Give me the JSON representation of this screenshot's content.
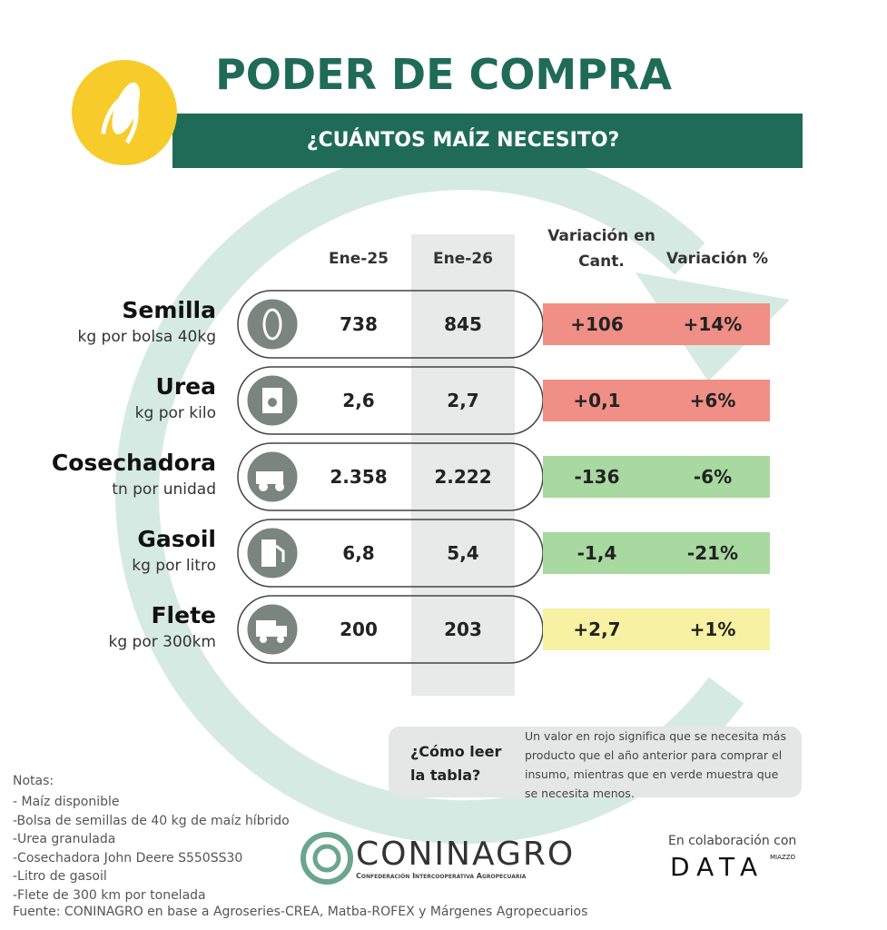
{
  "header": {
    "title": "PODER DE COMPRA",
    "subtitle": "¿CUÁNTOS MAÍZ NECESITO?"
  },
  "table": {
    "columns": [
      "Ene-25",
      "Ene-26",
      "Variación en Cant.",
      "Variación %"
    ],
    "rows": [
      {
        "name": "Semilla",
        "unit": "kg por bolsa 40kg",
        "ene25": "738",
        "ene26": "845",
        "var": "+106",
        "pct": "+14%",
        "color": "#ef8f85"
      },
      {
        "name": "Urea",
        "unit": "kg por kilo",
        "ene25": "2,6",
        "ene26": "2,7",
        "var": "+0,1",
        "pct": "+6%",
        "color": "#ef8f85"
      },
      {
        "name": "Cosechadora",
        "unit": "tn por unidad",
        "ene25": "2.358",
        "ene26": "2.222",
        "var": "-136",
        "pct": "-6%",
        "color": "#a8d9a0"
      },
      {
        "name": "Gasoil",
        "unit": "kg por litro",
        "ene25": "6,8",
        "ene26": "5,4",
        "var": "-1,4",
        "pct": "-21%",
        "color": "#a8d9a0"
      },
      {
        "name": "Flete",
        "unit": "kg por 300km",
        "ene25": "200",
        "ene26": "203",
        "var": "+2,7",
        "pct": "+1%",
        "color": "#f6f1a3"
      }
    ]
  },
  "legend": {
    "question": "¿Cómo leer la tabla?",
    "text": "Un valor en rojo significa que se necesita más producto que el año anterior para comprar el insumo, mientras que en verde muestra que se necesita menos."
  },
  "notes": {
    "title": "Notas:",
    "items": [
      "- Maíz disponible",
      "-Bolsa de semillas de 40 kg de maíz híbrido",
      "-Urea granulada",
      "-Cosechadora John Deere S550SS30",
      "-Litro de gasoil",
      "-Flete de 300 km por tonelada"
    ],
    "source": "Fuente: CONINAGRO en base a Agroseries-CREA, Matba-ROFEX y Márgenes Agropecuarios"
  },
  "footer": {
    "logo": "CONINAGRO",
    "logo_sub": "Confederación Intercooperativa Agropecuaria",
    "collab": "En colaboración con",
    "partner": "DATA",
    "partner_sub": "MIAZZO"
  }
}
